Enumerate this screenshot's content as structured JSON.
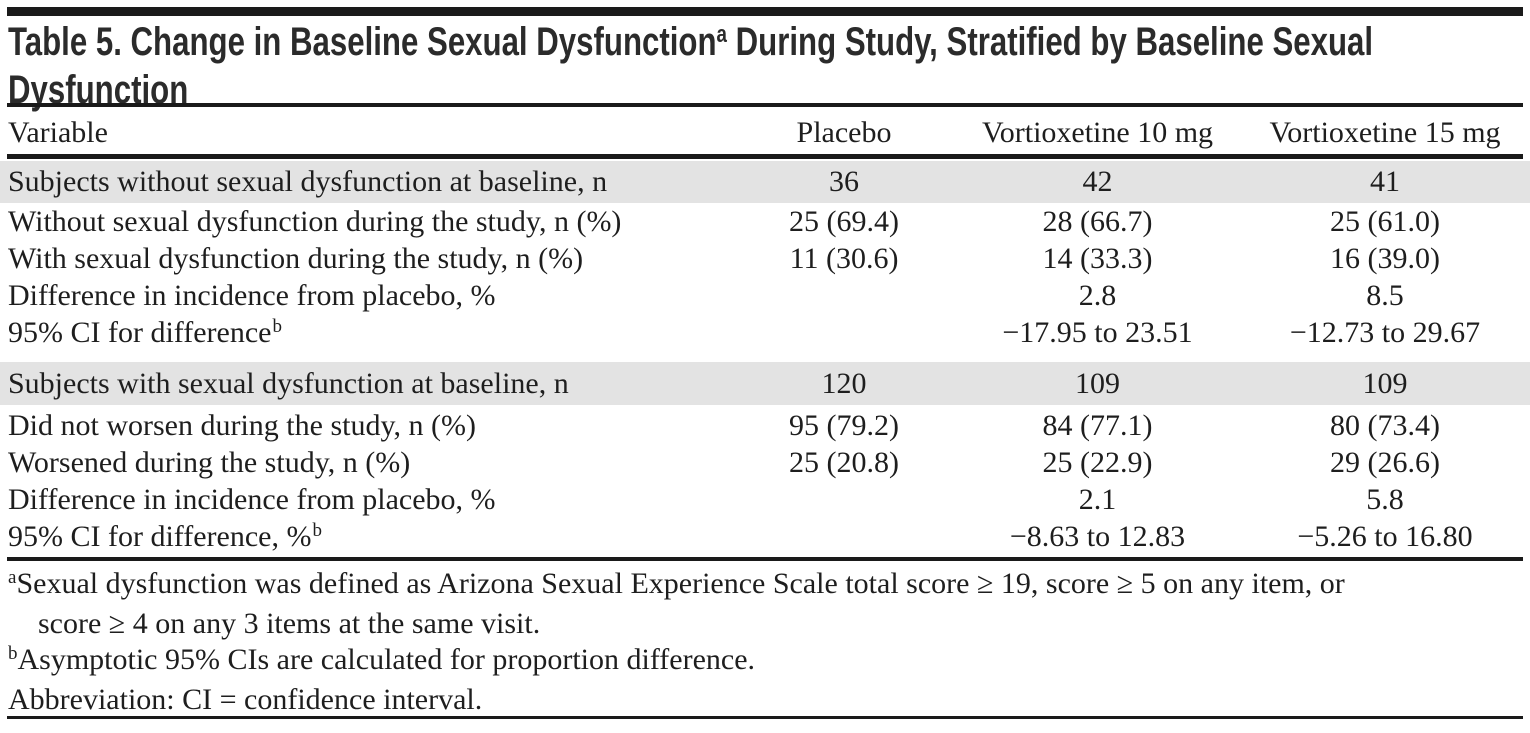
{
  "title": {
    "part1": "Table 5. Change in Baseline Sexual Dysfunction",
    "sup": "a",
    "part2": " During Study, Stratified by Baseline Sexual",
    "part3": "Dysfunction"
  },
  "columns": [
    "Variable",
    "Placebo",
    "Vortioxetine 10 mg",
    "Vortioxetine 15 mg"
  ],
  "sections": [
    {
      "header": {
        "label": "Subjects without sexual dysfunction at baseline, n",
        "values": [
          "36",
          "42",
          "41"
        ]
      },
      "rows": [
        {
          "label": "Without sexual dysfunction during the study, n (%)",
          "values": [
            "25 (69.4)",
            "28 (66.7)",
            "25 (61.0)"
          ]
        },
        {
          "label": "With sexual dysfunction during the study, n (%)",
          "values": [
            "11 (30.6)",
            "14 (33.3)",
            "16 (39.0)"
          ]
        },
        {
          "label": "Difference in incidence from placebo, %",
          "values": [
            "",
            "2.8",
            "8.5"
          ]
        },
        {
          "label": "95% CI for difference",
          "label_sup": "b",
          "values": [
            "",
            "−17.95 to 23.51",
            "−12.73 to 29.67"
          ]
        }
      ]
    },
    {
      "header": {
        "label": "Subjects with sexual dysfunction at baseline, n",
        "values": [
          "120",
          "109",
          "109"
        ]
      },
      "rows": [
        {
          "label": "Did not worsen during the study, n (%)",
          "values": [
            "95 (79.2)",
            "84 (77.1)",
            "80 (73.4)"
          ]
        },
        {
          "label": "Worsened during the study, n (%)",
          "values": [
            "25 (20.8)",
            "25 (22.9)",
            "29 (26.6)"
          ]
        },
        {
          "label": "Difference in incidence from placebo, %",
          "values": [
            "",
            "2.1",
            "5.8"
          ]
        },
        {
          "label": "95% CI for difference, %",
          "label_sup": "b",
          "values": [
            "",
            "−8.63 to 12.83",
            "−5.26 to 16.80"
          ]
        }
      ]
    }
  ],
  "footnotes": [
    {
      "sup": "a",
      "lines": [
        "Sexual dysfunction was defined as Arizona Sexual Experience Scale total score ≥ 19, score ≥ 5 on any item, or",
        "score ≥ 4 on any 3 items at the same visit."
      ]
    },
    {
      "sup": "b",
      "lines": [
        "Asymptotic 95% CIs are calculated for proportion difference."
      ]
    },
    {
      "sup": "",
      "lines": [
        "Abbreviation: CI = confidence interval."
      ]
    }
  ],
  "colors": {
    "band_gray": "#e3e3e3",
    "rule_black": "#1a1a1a",
    "text": "#1e1e1e"
  }
}
